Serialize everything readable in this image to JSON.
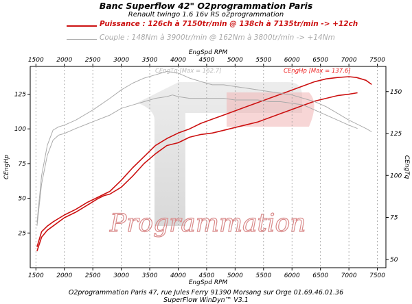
{
  "header": {
    "title": "Banc Superflow 42\" O2programmation Paris",
    "subtitle": "Renault twingo 1.6 16v RS o2programmation"
  },
  "legend": {
    "power": "Puissance : 126ch à 7150tr/min @ 138ch à 7135tr/min  -> +12ch",
    "torque": "Couple :  148Nm à 3900tr/min @ 162Nm à 3800tr/min -> +14Nm"
  },
  "footer": {
    "line1": "O2programmation Paris 47, rue Jules Ferry 91390 Morsang sur Orge 01.69.46.01.36",
    "line2": "SuperFlow WinDyn™ V3.1"
  },
  "watermark": "Programmation",
  "colors": {
    "power": "#cc1111",
    "torque": "#aaaaaa",
    "power_max_label": "#ee2222",
    "torque_max_label": "#bbbbbb"
  },
  "chart_data": {
    "type": "line",
    "x_axis": {
      "label": "EngSpd RPM",
      "range": [
        1400,
        7650
      ],
      "ticks": [
        1500,
        2000,
        2500,
        3000,
        3500,
        4000,
        4500,
        5000,
        5500,
        6000,
        6500,
        7000,
        7500
      ]
    },
    "y_axis_left": {
      "label": "CEngHp",
      "range": [
        0,
        145
      ],
      "ticks": [
        25,
        50,
        75,
        100,
        125
      ]
    },
    "y_axis_right": {
      "label": "CEngTq",
      "range": [
        45,
        165
      ],
      "ticks": [
        50,
        75,
        100,
        125,
        150
      ]
    },
    "annotations": {
      "power_max": "CEngHp [Max = 137.6]",
      "torque_max": "CEngTq [Max = 162.7]"
    },
    "grid": "dotted vertical lines at x ticks",
    "series": [
      {
        "axis": "left",
        "style": "power-stock",
        "x": [
          1520,
          1600,
          1700,
          1800,
          2000,
          2200,
          2400,
          2600,
          2700,
          2800,
          3000,
          3200,
          3400,
          3600,
          3800,
          4000,
          4200,
          4400,
          4600,
          4800,
          5000,
          5200,
          5400,
          5600,
          5800,
          6000,
          6200,
          6400,
          6600,
          6800,
          7000,
          7150
        ],
        "y": [
          12,
          22,
          27,
          30,
          36,
          40,
          45,
          50,
          52,
          53,
          58,
          66,
          75,
          82,
          88,
          90,
          94,
          96,
          97,
          99,
          101,
          103,
          105,
          108,
          111,
          114,
          117,
          120,
          122,
          124,
          125,
          126
        ]
      },
      {
        "axis": "left",
        "style": "power-tuned",
        "x": [
          1520,
          1600,
          1700,
          1800,
          2000,
          2200,
          2400,
          2600,
          2700,
          2800,
          3000,
          3200,
          3400,
          3600,
          3800,
          4000,
          4200,
          4400,
          4600,
          4800,
          5000,
          5200,
          5400,
          5600,
          5800,
          6000,
          6200,
          6400,
          6600,
          6800,
          7000,
          7135,
          7300,
          7400
        ],
        "y": [
          15,
          26,
          30,
          33,
          38,
          42,
          47,
          51,
          53,
          55,
          63,
          72,
          80,
          88,
          93,
          97,
          100,
          104,
          107,
          110,
          113,
          116,
          119,
          122,
          125,
          128,
          131,
          134,
          136,
          137,
          137.6,
          137,
          135,
          132
        ]
      },
      {
        "axis": "right",
        "style": "torque-stock",
        "x": [
          1520,
          1600,
          1700,
          1800,
          1900,
          2000,
          2200,
          2500,
          2800,
          3000,
          3200,
          3400,
          3600,
          3800,
          3900,
          4000,
          4200,
          4400,
          4600,
          4800,
          5000,
          5200,
          5400,
          5600,
          5800,
          6000,
          6200,
          6400,
          6600,
          6800,
          7000,
          7150
        ],
        "y": [
          70,
          95,
          112,
          121,
          124,
          125,
          128,
          132,
          136,
          140,
          142,
          144,
          146,
          147,
          148,
          147,
          146,
          146,
          146,
          146,
          145,
          145,
          145,
          144,
          144,
          143,
          142,
          139,
          136,
          133,
          130,
          128
        ]
      },
      {
        "axis": "right",
        "style": "torque-tuned",
        "x": [
          1520,
          1600,
          1700,
          1800,
          1900,
          2000,
          2200,
          2500,
          2800,
          3000,
          3200,
          3400,
          3600,
          3800,
          4000,
          4200,
          4400,
          4600,
          4800,
          5000,
          5200,
          5400,
          5600,
          5800,
          6000,
          6200,
          6400,
          6600,
          6800,
          7000,
          7300,
          7400
        ],
        "y": [
          72,
          100,
          118,
          127,
          129,
          130,
          133,
          139,
          146,
          151,
          155,
          158,
          160,
          162,
          161,
          158,
          156,
          154,
          154,
          153,
          152,
          151,
          150,
          149,
          148,
          146,
          144,
          141,
          137,
          133,
          128,
          126
        ]
      }
    ]
  }
}
